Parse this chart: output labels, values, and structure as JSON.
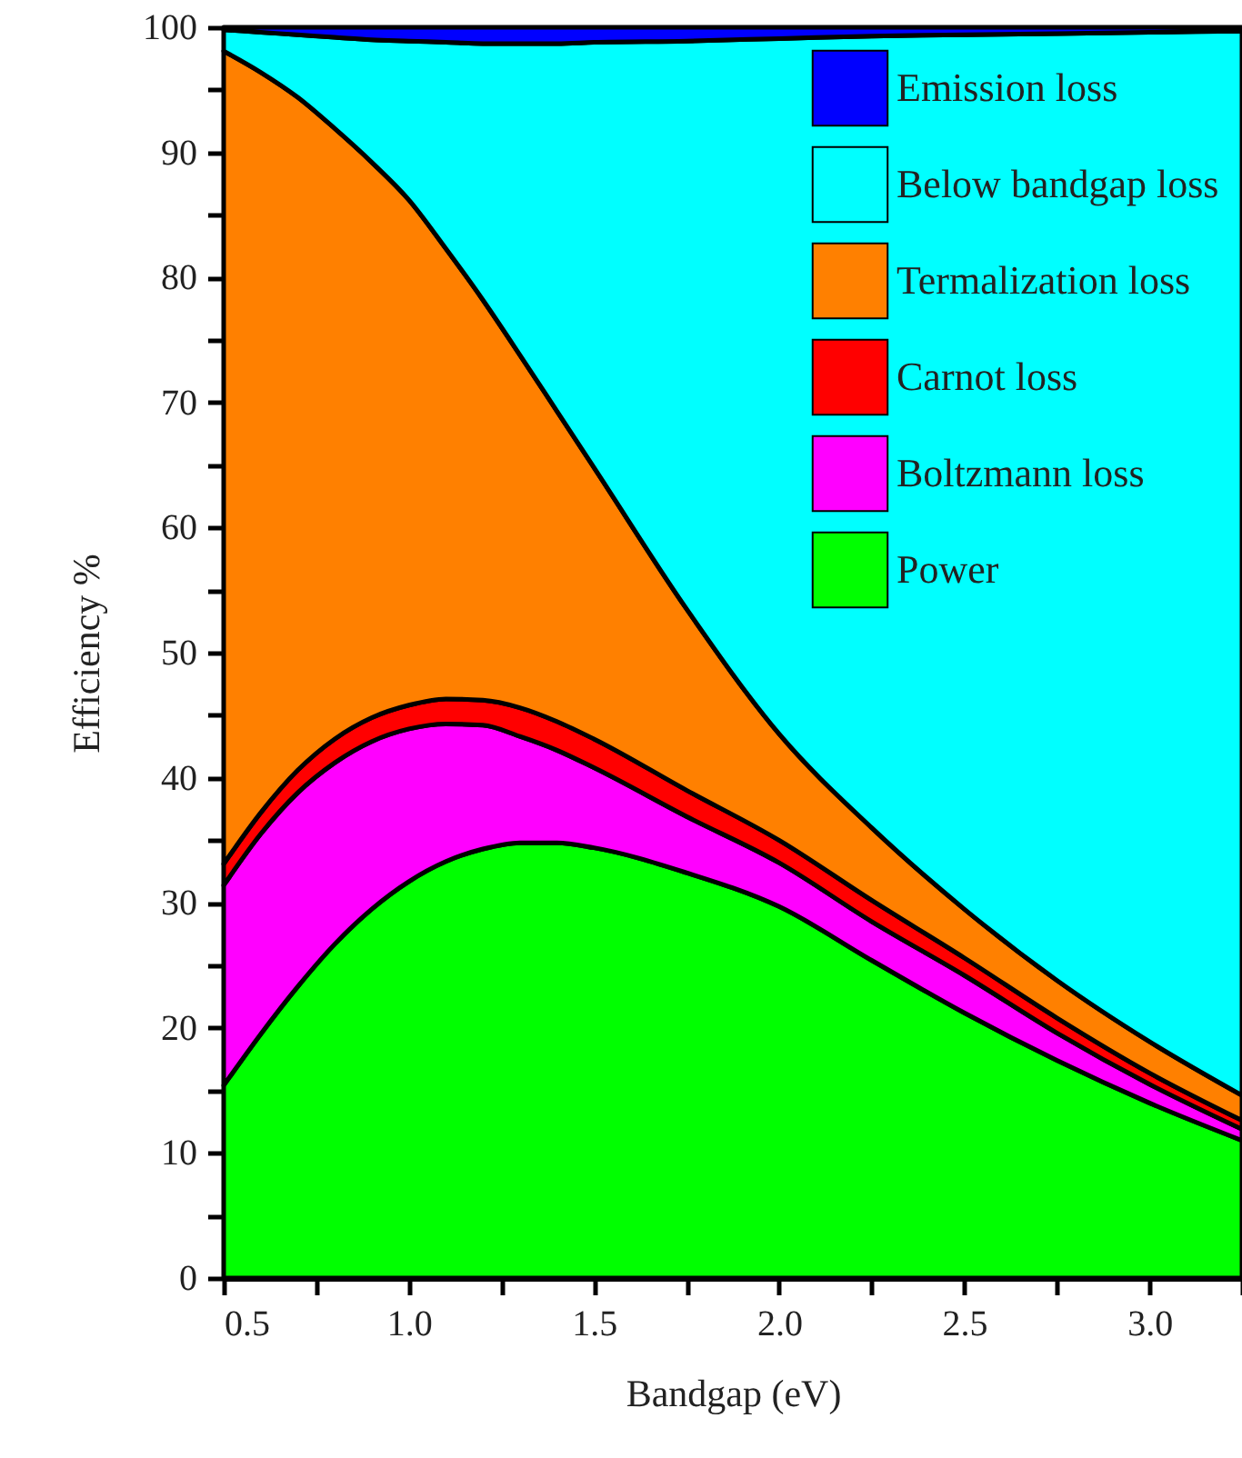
{
  "chart_data": {
    "type": "area",
    "stacked": true,
    "xlabel": "Bandgap (eV)",
    "ylabel": "Efficiency %",
    "legend": "top right",
    "x": [
      0.5,
      0.6,
      0.7,
      0.8,
      0.9,
      1.0,
      1.1,
      1.2,
      1.3,
      1.4,
      1.5,
      1.75,
      2.0,
      2.25,
      2.5,
      2.75,
      3.0,
      3.25
    ],
    "xlim": [
      0.5,
      3.25
    ],
    "xticks": [
      0.5,
      {
        "value": 0.75,
        "label": null
      },
      {
        "value": 1.0,
        "label": "1.0"
      },
      {
        "value": 1.25,
        "label": null
      },
      1.5,
      {
        "value": 1.75,
        "label": null
      },
      {
        "value": 2.0,
        "label": "2.0"
      },
      {
        "value": 2.25,
        "label": null
      },
      2.5,
      {
        "value": 2.75,
        "label": null
      },
      {
        "value": 3.0,
        "label": "3.0"
      },
      {
        "value": 3.25,
        "label": null
      }
    ],
    "ylim": [
      0,
      100
    ],
    "yticks": [
      0,
      {
        "value": 5,
        "label": null
      },
      10,
      {
        "value": 15,
        "label": null
      },
      20,
      {
        "value": 25,
        "label": null
      },
      30,
      {
        "value": 35,
        "label": null
      },
      40,
      {
        "value": 45,
        "label": null
      },
      50,
      {
        "value": 55,
        "label": null
      },
      60,
      {
        "value": 65,
        "label": null
      },
      70,
      {
        "value": 75,
        "label": null
      },
      80,
      {
        "value": 85,
        "label": null
      },
      90,
      {
        "value": 95,
        "label": null
      },
      100
    ],
    "series": [
      {
        "name": "Power",
        "color": "#00ff00",
        "values": [
          15.4,
          19.5,
          23.3,
          26.7,
          29.5,
          31.7,
          33.3,
          34.3,
          34.8,
          34.8,
          34.4,
          32.4,
          29.7,
          25.4,
          21.2,
          17.4,
          14.0,
          11.0
        ]
      },
      {
        "name": "Boltzmann loss",
        "color": "#ff00ff",
        "values": [
          16.0,
          16.0,
          15.5,
          14.5,
          13.4,
          12.2,
          11.0,
          9.9,
          8.5,
          7.4,
          6.4,
          4.5,
          3.5,
          3.1,
          3.0,
          2.2,
          1.5,
          0.9
        ]
      },
      {
        "name": "Carnot loss",
        "color": "#ff0000",
        "values": [
          1.7,
          1.7,
          1.8,
          1.9,
          1.9,
          1.9,
          2.0,
          2.0,
          2.3,
          2.3,
          2.3,
          2.1,
          1.8,
          1.7,
          1.4,
          1.2,
          0.9,
          0.7
        ]
      },
      {
        "name": "Termalization loss",
        "color": "#ff8000",
        "values": [
          65.0,
          59.2,
          53.8,
          48.8,
          44.4,
          40.4,
          36.0,
          32.0,
          28.2,
          24.8,
          21.7,
          14.5,
          8.5,
          5.8,
          3.9,
          3.0,
          2.5,
          2.0
        ]
      },
      {
        "name": "Below bandgap loss",
        "color": "#00ffff",
        "values": [
          1.7,
          3.2,
          5.0,
          7.3,
          9.8,
          12.7,
          16.5,
          20.5,
          24.9,
          29.4,
          34.0,
          45.4,
          55.6,
          63.3,
          69.9,
          75.7,
          80.7,
          85.1
        ]
      },
      {
        "name": "Emission loss",
        "color": "#0000ff",
        "values": [
          0.2,
          0.4,
          0.6,
          0.8,
          1.0,
          1.1,
          1.2,
          1.3,
          1.3,
          1.3,
          1.2,
          1.1,
          0.9,
          0.7,
          0.6,
          0.5,
          0.4,
          0.3
        ]
      }
    ]
  }
}
